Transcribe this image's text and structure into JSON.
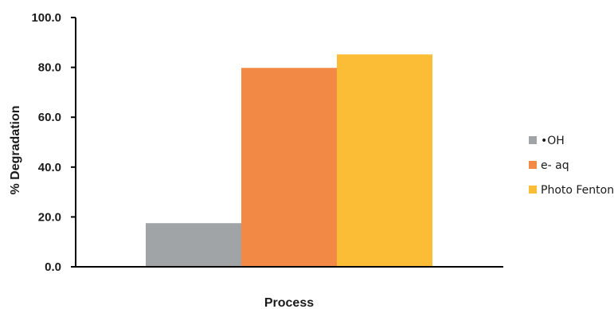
{
  "chart_data": {
    "type": "bar",
    "categories": [
      ""
    ],
    "series": [
      {
        "name": "•OH",
        "values": [
          17.5
        ],
        "color": "#a0a4a6"
      },
      {
        "name": "e- aq",
        "values": [
          79.8
        ],
        "color": "#f28a45"
      },
      {
        "name": "Photo Fenton",
        "values": [
          85.2
        ],
        "color": "#fbbd35"
      }
    ],
    "ylim": [
      0,
      100
    ],
    "yticks": [
      "0.0",
      "20.0",
      "40.0",
      "60.0",
      "80.0",
      "100.0"
    ],
    "xlabel": "Process",
    "ylabel": "% Degradation",
    "grid": false,
    "legend": "right"
  }
}
